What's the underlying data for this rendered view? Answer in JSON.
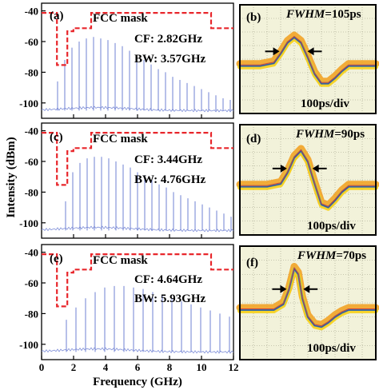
{
  "figure": {
    "ylabel": "Intensity (dBm)",
    "xlabel": "Frequency (GHz)"
  },
  "chart_data": [
    {
      "panel": "(a)",
      "type": "line",
      "title": "",
      "xlabel": "Frequency (GHz)",
      "ylabel": "Intensity (dBm)",
      "xlim": [
        0,
        12
      ],
      "ylim": [
        -110,
        -35
      ],
      "x_ticks": [],
      "y_ticks": [
        -40,
        -60,
        -80,
        -100
      ],
      "mask_label": "FCC mask",
      "cf_text": "CF: 2.82GHz",
      "bw_text": "BW: 3.57GHz",
      "mask": {
        "x": [
          0,
          0.96,
          0.96,
          1.61,
          1.61,
          1.99,
          1.99,
          3.1,
          3.1,
          10.6,
          10.6,
          12
        ],
        "y": [
          -41.3,
          -41.3,
          -75.3,
          -75.3,
          -53.3,
          -53.3,
          -51.3,
          -51.3,
          -41.3,
          -41.3,
          -51.3,
          -51.3
        ]
      },
      "series": [
        {
          "peak_x": [
            1.0,
            1.45,
            1.9,
            2.35,
            2.8,
            3.25,
            3.7,
            4.15,
            4.6,
            5.05,
            5.5,
            5.95,
            6.4,
            6.85,
            7.3,
            7.75,
            8.2,
            8.65,
            9.1,
            9.55,
            10.0,
            10.45,
            10.9,
            11.35,
            11.8
          ],
          "peak_y": [
            -86,
            -72,
            -64,
            -60,
            -58,
            -57,
            -58,
            -59,
            -61,
            -63,
            -66,
            -69,
            -72,
            -75,
            -78,
            -80,
            -83,
            -85,
            -87,
            -89,
            -91,
            -93,
            -95,
            -97,
            -98
          ],
          "floor_y": -105
        }
      ]
    },
    {
      "panel": "(c)",
      "type": "line",
      "title": "",
      "xlabel": "Frequency (GHz)",
      "ylabel": "Intensity (dBm)",
      "xlim": [
        0,
        12
      ],
      "ylim": [
        -110,
        -35
      ],
      "x_ticks": [],
      "y_ticks": [
        -40,
        -60,
        -80,
        -100
      ],
      "mask_label": "FCC mask",
      "cf_text": "CF: 3.44GHz",
      "bw_text": "BW: 4.76GHz",
      "mask": {
        "x": [
          0,
          0.96,
          0.96,
          1.61,
          1.61,
          1.99,
          1.99,
          3.1,
          3.1,
          10.6,
          10.6,
          12
        ],
        "y": [
          -41.3,
          -41.3,
          -75.3,
          -75.3,
          -53.3,
          -53.3,
          -51.3,
          -51.3,
          -41.3,
          -41.3,
          -51.3,
          -51.3
        ]
      },
      "series": [
        {
          "peak_x": [
            1.5,
            1.95,
            2.4,
            2.85,
            3.3,
            3.75,
            4.2,
            4.65,
            5.1,
            5.55,
            6.0,
            6.45,
            6.9,
            7.35,
            7.8,
            8.25,
            8.7,
            9.15,
            9.6,
            10.05,
            10.5,
            10.95,
            11.4,
            11.85
          ],
          "peak_y": [
            -86,
            -67,
            -61,
            -58,
            -57,
            -57,
            -58,
            -60,
            -62,
            -64,
            -67,
            -69,
            -72,
            -75,
            -77,
            -80,
            -82,
            -84,
            -86,
            -88,
            -90,
            -92,
            -94,
            -96
          ],
          "floor_y": -105
        }
      ]
    },
    {
      "panel": "(e)",
      "type": "line",
      "title": "",
      "xlabel": "Frequency (GHz)",
      "ylabel": "Intensity (dBm)",
      "xlim": [
        0,
        12
      ],
      "ylim": [
        -110,
        -35
      ],
      "x_ticks": [
        0,
        2,
        4,
        6,
        8,
        10,
        12
      ],
      "y_ticks": [
        -40,
        -60,
        -80,
        -100
      ],
      "mask_label": "FCC mask",
      "cf_text": "CF: 4.64GHz",
      "bw_text": "BW: 5.93GHz",
      "mask": {
        "x": [
          0,
          0.96,
          0.96,
          1.61,
          1.61,
          1.99,
          1.99,
          3.1,
          3.1,
          10.6,
          10.6,
          12
        ],
        "y": [
          -41.3,
          -41.3,
          -75.3,
          -75.3,
          -53.3,
          -53.3,
          -51.3,
          -51.3,
          -41.3,
          -41.3,
          -51.3,
          -51.3
        ]
      },
      "series": [
        {
          "peak_x": [
            1.55,
            2.15,
            2.75,
            3.35,
            3.95,
            4.55,
            5.15,
            5.75,
            6.35,
            6.95,
            7.55,
            8.15,
            8.75,
            9.35,
            9.95,
            10.55,
            11.15,
            11.75
          ],
          "peak_y": [
            -84,
            -76,
            -70,
            -66,
            -63,
            -62,
            -62,
            -63,
            -64,
            -66,
            -68,
            -70,
            -72,
            -74,
            -76,
            -78,
            -80,
            -82
          ],
          "floor_y": -105
        }
      ]
    },
    {
      "panel": "(b)",
      "type": "line",
      "title": "",
      "fwhm_label": "FWHM",
      "fwhm_value": "=105ps",
      "timebase_text": "100ps/div",
      "series": [
        {
          "t_div": [
            0.0,
            1.5,
            2.5,
            3.0,
            3.5,
            4.0,
            4.5,
            5.0,
            5.5,
            6.0,
            6.5,
            7.0,
            7.5,
            8.0,
            10.0
          ],
          "level_div": [
            0.0,
            0.0,
            0.2,
            0.9,
            1.7,
            2.1,
            1.7,
            0.6,
            -0.6,
            -1.3,
            -1.3,
            -0.9,
            -0.4,
            0.0,
            0.0
          ]
        }
      ]
    },
    {
      "panel": "(d)",
      "type": "line",
      "title": "",
      "fwhm_label": "FWHM",
      "fwhm_value": "=90ps",
      "timebase_text": "100ps/div",
      "series": [
        {
          "t_div": [
            0.0,
            2.0,
            3.0,
            3.5,
            4.0,
            4.5,
            5.0,
            5.5,
            6.0,
            6.5,
            7.0,
            7.5,
            8.0,
            10.0
          ],
          "level_div": [
            0.0,
            0.0,
            0.2,
            1.0,
            2.1,
            2.6,
            1.8,
            0.2,
            -1.3,
            -1.5,
            -1.0,
            -0.4,
            0.0,
            0.0
          ]
        }
      ]
    },
    {
      "panel": "(f)",
      "type": "line",
      "title": "",
      "fwhm_label": "FWHM",
      "fwhm_value": "=70ps",
      "timebase_text": "100ps/div",
      "series": [
        {
          "t_div": [
            0.0,
            2.5,
            3.2,
            3.6,
            4.0,
            4.3,
            4.6,
            5.0,
            5.5,
            6.0,
            6.5,
            7.0,
            7.5,
            8.0,
            10.0
          ],
          "level_div": [
            0.0,
            0.0,
            0.4,
            1.4,
            2.9,
            2.5,
            0.8,
            -0.5,
            -1.1,
            -1.2,
            -0.9,
            -0.5,
            -0.2,
            0.0,
            0.0
          ]
        }
      ]
    }
  ]
}
